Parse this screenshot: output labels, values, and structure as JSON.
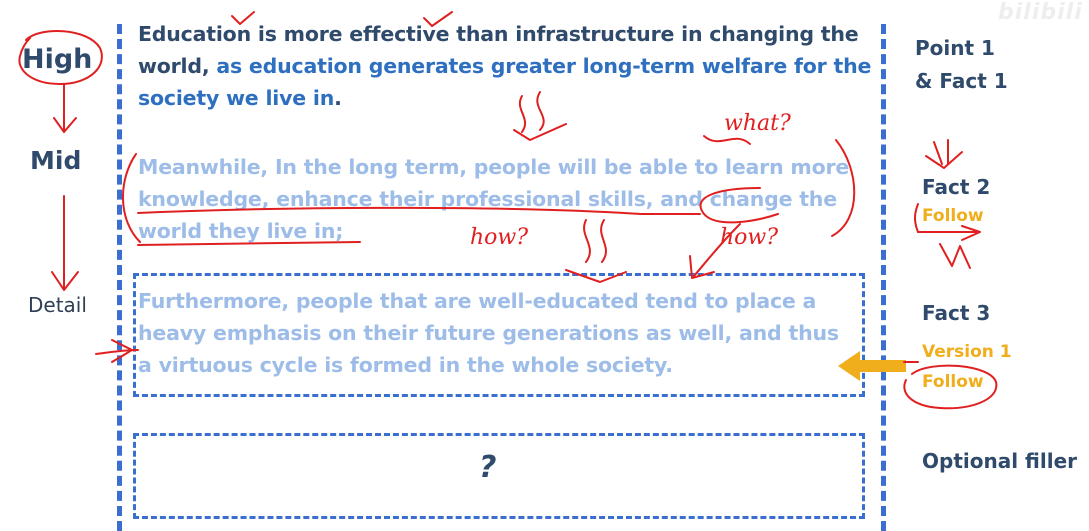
{
  "levels": {
    "high": "High",
    "mid": "Mid",
    "detail": "Detail"
  },
  "paragraphs": {
    "point": {
      "main": "Education is more effective than infrastructure in changing the world,",
      "claim": " as education generates greater long-term welfare for the society we live in",
      "end": "."
    },
    "fact2": "Meanwhile, In the long term, people will be able to learn more knowledge, enhance their professional skills, and change the world they live in;",
    "fact3": "Furthermore, people that are well-educated tend to place a heavy emphasis on their future generations as well, and thus a virtuous cycle is formed in the whole society."
  },
  "filler_box": {
    "mark": "?"
  },
  "right_labels": {
    "point1": "Point 1",
    "fact1": "& Fact 1",
    "fact2": "Fact 2",
    "follow_a": "Follow",
    "fact3": "Fact 3",
    "version1": "Version 1",
    "follow_b": "Follow",
    "optional": "Optional filler"
  },
  "annotations": {
    "what": "what?",
    "how1": "how?",
    "how2": "how?"
  },
  "watermark": "bilibili",
  "colors": {
    "dark_text": "#2f4a6b",
    "claim_blue": "#2e6fc0",
    "faded_blue": "#9dbde8",
    "dash_blue": "#3a6ed0",
    "orange": "#f0ad1c",
    "ink_red": "#e02020"
  }
}
